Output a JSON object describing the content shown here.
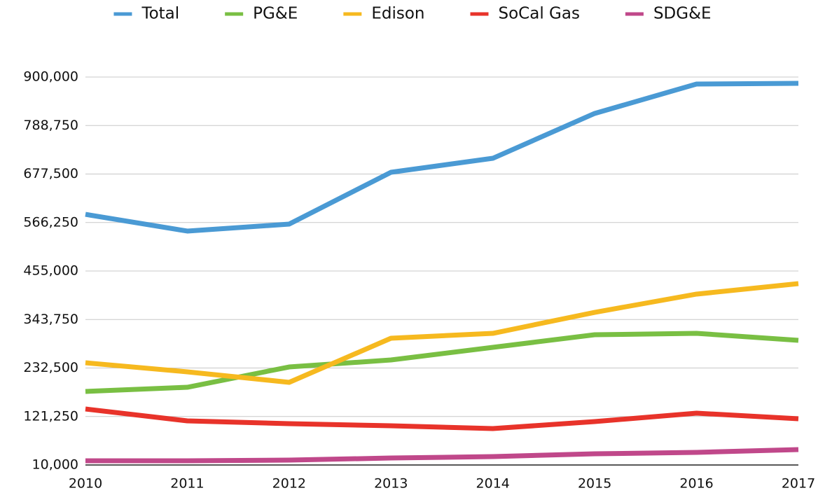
{
  "chart_data": {
    "type": "line",
    "x": [
      2010,
      2011,
      2012,
      2013,
      2014,
      2015,
      2016,
      2017
    ],
    "xlim": [
      2010,
      2017
    ],
    "xticks": [
      2010,
      2011,
      2012,
      2013,
      2014,
      2015,
      2016,
      2017
    ],
    "ylim": [
      10000,
      900000
    ],
    "yticks": [
      {
        "value": 10000,
        "label": "10,000"
      },
      {
        "value": 121250,
        "label": "121,250"
      },
      {
        "value": 232500,
        "label": "232,500"
      },
      {
        "value": 343750,
        "label": "343,750"
      },
      {
        "value": 455000,
        "label": "455,000"
      },
      {
        "value": 566250,
        "label": "566,250"
      },
      {
        "value": 677500,
        "label": "677,500"
      },
      {
        "value": 788750,
        "label": "788,750"
      },
      {
        "value": 900000,
        "label": "900,000"
      }
    ],
    "grid": true,
    "legend": "top",
    "series": [
      {
        "name": "Total",
        "color": "#4a9ad4",
        "values": [
          585000,
          546600,
          562600,
          681500,
          713600,
          816500,
          884000,
          885500
        ]
      },
      {
        "name": "PG&E",
        "color": "#79bf43",
        "values": [
          178700,
          188300,
          234900,
          251000,
          279900,
          308800,
          312000,
          296000
        ]
      },
      {
        "name": "Edison",
        "color": "#f6b91f",
        "values": [
          244500,
          223700,
          199600,
          300800,
          312000,
          360200,
          402000,
          426100
        ]
      },
      {
        "name": "SoCal Gas",
        "color": "#e8332a",
        "values": [
          138500,
          111200,
          104800,
          100000,
          93500,
          109600,
          128900,
          116000
        ]
      },
      {
        "name": "SDG&E",
        "color": "#c0488a",
        "values": [
          19600,
          19600,
          21200,
          26000,
          29300,
          35700,
          38900,
          45300
        ]
      }
    ]
  }
}
